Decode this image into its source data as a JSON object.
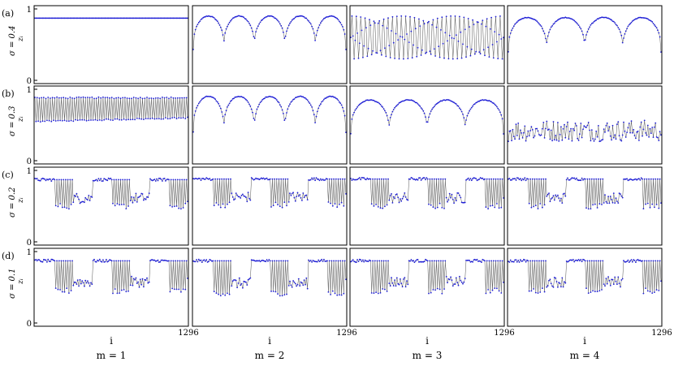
{
  "figure": {
    "row_labels": [
      "(a)",
      "(b)",
      "(c)",
      "(d)"
    ],
    "sigma_labels": [
      "σ = 0.4",
      "σ = 0.3",
      "σ = 0.2",
      "σ = 0.1"
    ],
    "y_axis_label": "zᵢ",
    "x_axis_label": "i",
    "column_labels": [
      "m = 1",
      "m = 2",
      "m = 3",
      "m = 4"
    ],
    "colors": {
      "marker": "#1f1fd6",
      "line": "#555555",
      "frame": "#000000"
    }
  },
  "chart_data": {
    "type": "scatter",
    "layout": "4x4 grid of panels",
    "x": {
      "label": "i",
      "range": [
        1,
        1296
      ],
      "tick_labels": [
        "1296"
      ]
    },
    "y": {
      "label": "zᵢ",
      "range": [
        0,
        1
      ],
      "tick_labels": [
        "0",
        "1"
      ]
    },
    "rows": [
      {
        "label": "(a)",
        "sigma": 0.4
      },
      {
        "label": "(b)",
        "sigma": 0.3
      },
      {
        "label": "(c)",
        "sigma": 0.2
      },
      {
        "label": "(d)",
        "sigma": 0.1
      }
    ],
    "columns": [
      {
        "label": "m = 1",
        "m": 1
      },
      {
        "label": "m = 2",
        "m": 2
      },
      {
        "label": "m = 3",
        "m": 3
      },
      {
        "label": "m = 4",
        "m": 4
      }
    ],
    "panels": [
      {
        "row": 0,
        "col": 0,
        "pattern": "constant",
        "level": 0.87
      },
      {
        "row": 0,
        "col": 1,
        "pattern": "square_wave",
        "periods": 5,
        "high": 0.9,
        "low": 0.43
      },
      {
        "row": 0,
        "col": 2,
        "pattern": "oscillation",
        "periods": 34,
        "high": 0.9,
        "low": 0.3
      },
      {
        "row": 0,
        "col": 3,
        "pattern": "square_wave",
        "periods": 4,
        "high": 0.88,
        "low": 0.4
      },
      {
        "row": 1,
        "col": 0,
        "pattern": "two_branch",
        "high": 0.88,
        "low": 0.55
      },
      {
        "row": 1,
        "col": 1,
        "pattern": "square_wave",
        "periods": 5,
        "high": 0.9,
        "low": 0.4
      },
      {
        "row": 1,
        "col": 2,
        "pattern": "square_wave",
        "periods": 4,
        "high": 0.85,
        "low": 0.38
      },
      {
        "row": 1,
        "col": 3,
        "pattern": "noise",
        "center": 0.42,
        "spread": 0.15
      },
      {
        "row": 2,
        "col": 0,
        "pattern": "segments",
        "high": 0.87,
        "low": 0.5
      },
      {
        "row": 2,
        "col": 1,
        "pattern": "segments",
        "high": 0.88,
        "low": 0.52
      },
      {
        "row": 2,
        "col": 2,
        "pattern": "segments",
        "high": 0.88,
        "low": 0.5
      },
      {
        "row": 2,
        "col": 3,
        "pattern": "segments",
        "high": 0.88,
        "low": 0.5
      },
      {
        "row": 3,
        "col": 0,
        "pattern": "segments",
        "high": 0.87,
        "low": 0.45
      },
      {
        "row": 3,
        "col": 1,
        "pattern": "segments",
        "high": 0.87,
        "low": 0.42
      },
      {
        "row": 3,
        "col": 2,
        "pattern": "segments",
        "high": 0.87,
        "low": 0.45
      },
      {
        "row": 3,
        "col": 3,
        "pattern": "segments",
        "high": 0.87,
        "low": 0.45
      }
    ]
  }
}
